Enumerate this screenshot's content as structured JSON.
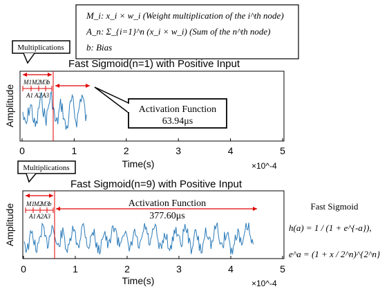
{
  "legend_box": {
    "line1": "M_i: x_i × w_i (Weight multiplication of the i^th node)",
    "line2": "A_n: Σ_{i=1}^n (x_i × w_i) (Sum of the n^th node)",
    "line3": "b: Bias"
  },
  "formula": {
    "title": "Fast Sigmoid",
    "line1": "h(a) = 1 / (1 + e^{-a}),",
    "line2": "e^a = (1 + x / 2^n)^{2^n}"
  },
  "chart_data": [
    {
      "type": "line",
      "title": "Fast Sigmoid(n=1) with Positive Input",
      "xlabel": "Time(s)",
      "ylabel": "Amplitude",
      "xlim": [
        0,
        5
      ],
      "x_scale_label": "×10^-4",
      "x_ticks": [
        "0",
        "1",
        "2",
        "3",
        "4",
        "5"
      ],
      "signal_end": 1.25,
      "phase_boundary": 0.6,
      "callout": "Multiplications",
      "phase_labels": [
        "M1",
        "M2",
        "M3",
        "b",
        "A1",
        "A2",
        "A3"
      ],
      "activation_label": "Activation Function",
      "activation_time": "63.94μs"
    },
    {
      "type": "line",
      "title": "Fast Sigmoid(n=9) with Positive Input",
      "xlabel": "Time(s)",
      "ylabel": "Amplitude",
      "xlim": [
        0,
        5
      ],
      "x_scale_label": "×10^-4",
      "x_ticks": [
        "0",
        "1",
        "2",
        "3",
        "4",
        "5"
      ],
      "signal_end": 4.45,
      "phase_boundary": 0.6,
      "callout": "Multiplications",
      "phase_labels": [
        "M1",
        "M2",
        "M3",
        "b",
        "A1",
        "A2",
        "A3"
      ],
      "activation_label": "Activation Function",
      "activation_time": "377.60μs"
    }
  ]
}
